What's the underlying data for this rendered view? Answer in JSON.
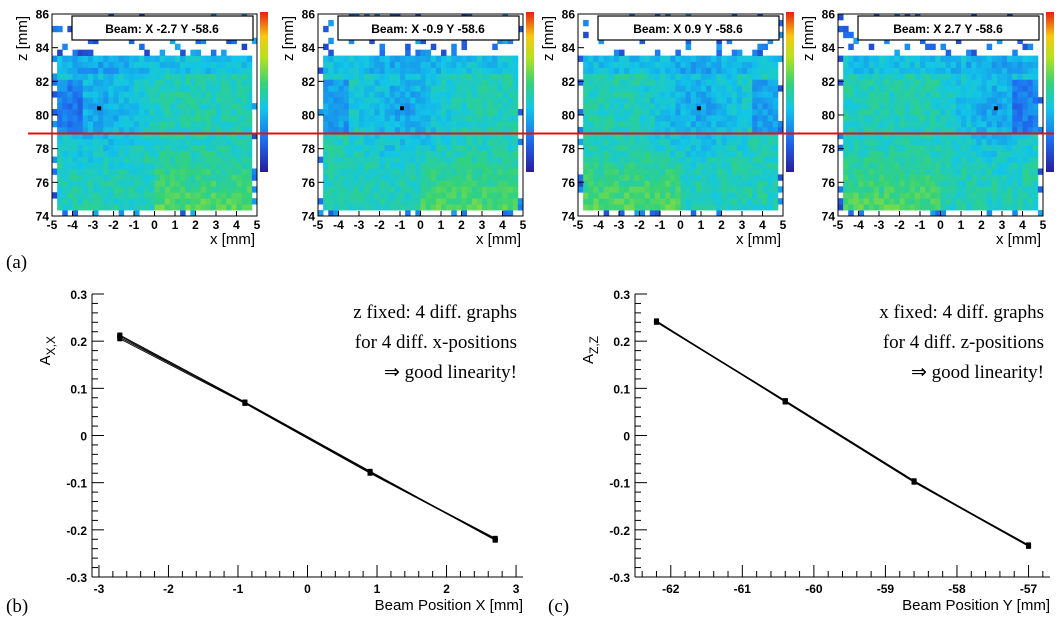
{
  "panel_labels": {
    "a": "(a)",
    "b": "(b)",
    "c": "(c)"
  },
  "colors": {
    "reference_line": "#e01010",
    "line": "#000000",
    "annotation_highlight": "#c0141c"
  },
  "chart_data": [
    {
      "type": "heatmap",
      "title": "Beam: X -2.7  Y -58.6",
      "xlabel": "x [mm]",
      "ylabel": "z [mm]",
      "xlim": [
        -5,
        5
      ],
      "ylim": [
        74,
        86
      ],
      "xticks": [
        "-5",
        "-4",
        "-3",
        "-2",
        "-1",
        "0",
        "1",
        "2",
        "3",
        "4",
        "5"
      ],
      "yticks": [
        "74",
        "76",
        "78",
        "80",
        "82",
        "84",
        "86"
      ],
      "beam_marker": {
        "x": -2.7,
        "z": 80.4
      },
      "reference_line_z": 78.9
    },
    {
      "type": "heatmap",
      "title": "Beam: X -0.9  Y -58.6",
      "xlabel": "x [mm]",
      "ylabel": "z [mm]",
      "xlim": [
        -5,
        5
      ],
      "ylim": [
        74,
        86
      ],
      "xticks": [
        "-5",
        "-4",
        "-3",
        "-2",
        "-1",
        "0",
        "1",
        "2",
        "3",
        "4",
        "5"
      ],
      "yticks": [
        "74",
        "76",
        "78",
        "80",
        "82",
        "84",
        "86"
      ],
      "beam_marker": {
        "x": -0.9,
        "z": 80.4
      },
      "reference_line_z": 78.9
    },
    {
      "type": "heatmap",
      "title": "Beam: X 0.9  Y -58.6",
      "xlabel": "x [mm]",
      "ylabel": "z [mm]",
      "xlim": [
        -5,
        5
      ],
      "ylim": [
        74,
        86
      ],
      "xticks": [
        "-5",
        "-4",
        "-3",
        "-2",
        "-1",
        "0",
        "1",
        "2",
        "3",
        "4",
        "5"
      ],
      "yticks": [
        "74",
        "76",
        "78",
        "80",
        "82",
        "84",
        "86"
      ],
      "beam_marker": {
        "x": 0.9,
        "z": 80.4
      },
      "reference_line_z": 78.9
    },
    {
      "type": "heatmap",
      "title": "Beam: X 2.7  Y -58.6",
      "xlabel": "x [mm]",
      "ylabel": "z [mm]",
      "xlim": [
        -5,
        5
      ],
      "ylim": [
        74,
        86
      ],
      "xticks": [
        "-5",
        "-4",
        "-3",
        "-2",
        "-1",
        "0",
        "1",
        "2",
        "3",
        "4",
        "5"
      ],
      "yticks": [
        "74",
        "76",
        "78",
        "80",
        "82",
        "84",
        "86"
      ],
      "beam_marker": {
        "x": 2.7,
        "z": 80.4
      },
      "reference_line_z": 78.9
    },
    {
      "type": "line",
      "xlabel": "Beam Position X [mm]",
      "ylabel": "A_{X,X}",
      "ylabel_main": "A",
      "ylabel_sub": "X,X",
      "xlim": [
        -3.1,
        3.1
      ],
      "ylim": [
        -0.3,
        0.3
      ],
      "xticks": [
        -3,
        -2,
        -1,
        0,
        1,
        2,
        3
      ],
      "yticks": [
        -0.3,
        -0.2,
        -0.1,
        0,
        0.1,
        0.2,
        0.3
      ],
      "ytick_labels": [
        "-0.3",
        "-0.2",
        "-0.1",
        "0",
        "0.1",
        "0.2",
        "0.3"
      ],
      "grid": false,
      "series": [
        {
          "x": [
            -2.7,
            -0.9,
            0.9,
            2.7
          ],
          "y": [
            0.205,
            0.068,
            -0.08,
            -0.22
          ]
        },
        {
          "x": [
            -2.7,
            -0.9,
            0.9,
            2.7
          ],
          "y": [
            0.208,
            0.07,
            -0.077,
            -0.222
          ]
        },
        {
          "x": [
            -2.7,
            -0.9,
            0.9,
            2.7
          ],
          "y": [
            0.211,
            0.069,
            -0.079,
            -0.218
          ]
        },
        {
          "x": [
            -2.7,
            -0.9,
            0.9,
            2.7
          ],
          "y": [
            0.213,
            0.071,
            -0.076,
            -0.221
          ]
        }
      ],
      "annotation": {
        "line1": "z fixed: 4 diff. graphs",
        "line2": "for 4 diff. x-positions",
        "line3": "⇒ good linearity!"
      }
    },
    {
      "type": "line",
      "xlabel": "Beam Position Y [mm]",
      "ylabel": "A_{Z,Z}",
      "ylabel_main": "A",
      "ylabel_sub": "Z,Z",
      "xlim": [
        -62.5,
        -56.7
      ],
      "ylim": [
        -0.3,
        0.3
      ],
      "xticks": [
        -62,
        -61,
        -60,
        -59,
        -58,
        -57
      ],
      "yticks": [
        -0.3,
        -0.2,
        -0.1,
        0,
        0.1,
        0.2,
        0.3
      ],
      "ytick_labels": [
        "-0.3",
        "-0.2",
        "-0.1",
        "0",
        "0.1",
        "0.2",
        "0.3"
      ],
      "grid": false,
      "series": [
        {
          "x": [
            -62.2,
            -60.4,
            -58.6,
            -57.0
          ],
          "y": [
            0.24,
            0.072,
            -0.098,
            -0.232
          ]
        },
        {
          "x": [
            -62.2,
            -60.4,
            -58.6,
            -57.0
          ],
          "y": [
            0.242,
            0.074,
            -0.096,
            -0.234
          ]
        },
        {
          "x": [
            -62.2,
            -60.4,
            -58.6,
            -57.0
          ],
          "y": [
            0.241,
            0.073,
            -0.097,
            -0.233
          ]
        },
        {
          "x": [
            -62.2,
            -60.4,
            -58.6,
            -57.0
          ],
          "y": [
            0.243,
            0.071,
            -0.099,
            -0.235
          ]
        }
      ],
      "annotation": {
        "line1": "x fixed: 4 diff. graphs",
        "line2": "for 4 diff. z-positions",
        "line3": "⇒ good linearity!"
      }
    }
  ]
}
